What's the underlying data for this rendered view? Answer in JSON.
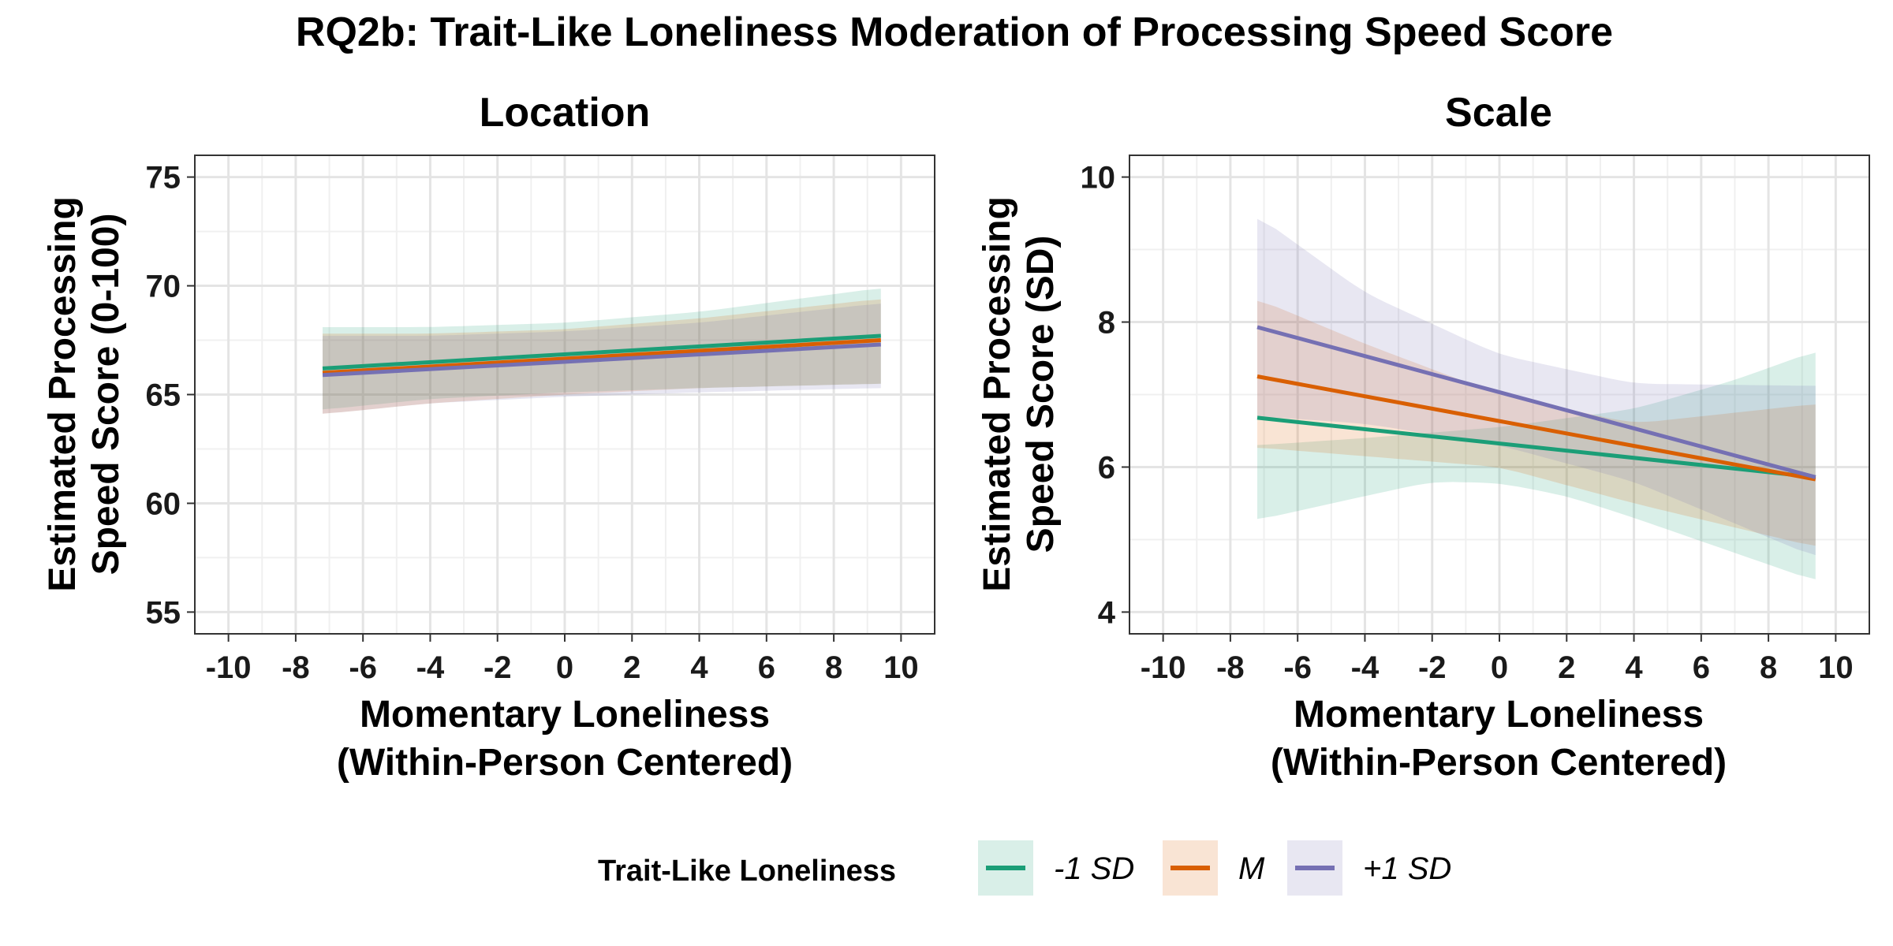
{
  "chart_data": {
    "type": "line",
    "title": "RQ2b: Trait-Like Loneliness Moderation of Processing Speed Score",
    "legend": {
      "title": "Trait-Like Loneliness",
      "placement": "bottom",
      "entries": [
        "-1 SD",
        "M",
        "+1 SD"
      ]
    },
    "colors": {
      "-1 SD": "#1b9e77",
      "M": "#d95f02",
      "+1 SD": "#7570b3"
    },
    "panels": [
      {
        "strip": "Location",
        "xlabel": "Momentary Loneliness\n(Within-Person Centered)",
        "ylabel": "Estimated Processing\nSpeed Score (0-100)",
        "xlim": [
          -11,
          11
        ],
        "ylim": [
          54,
          76
        ],
        "xticks": [
          -10,
          -8,
          -6,
          -4,
          -2,
          0,
          2,
          4,
          6,
          8,
          10
        ],
        "yticks": [
          55,
          60,
          65,
          70,
          75
        ],
        "grid": true,
        "series": [
          {
            "name": "-1 SD",
            "x": [
              -7.2,
              9.4
            ],
            "y": [
              66.2,
              67.7
            ],
            "lower": [
              [
                -7.2,
                64.3
              ],
              [
                -4,
                64.8
              ],
              [
                0,
                65.1
              ],
              [
                4,
                65.3
              ],
              [
                9.4,
                65.5
              ]
            ],
            "upper": [
              [
                -7.2,
                68.1
              ],
              [
                -4,
                68.1
              ],
              [
                0,
                68.3
              ],
              [
                4,
                68.8
              ],
              [
                9.4,
                69.9
              ]
            ]
          },
          {
            "name": "M",
            "x": [
              -7.2,
              9.4
            ],
            "y": [
              66.0,
              67.5
            ],
            "lower": [
              [
                -7.2,
                64.1
              ],
              [
                -4,
                64.6
              ],
              [
                0,
                65.0
              ],
              [
                4,
                65.3
              ],
              [
                9.4,
                65.5
              ]
            ],
            "upper": [
              [
                -7.2,
                67.8
              ],
              [
                -4,
                67.8
              ],
              [
                0,
                68.0
              ],
              [
                4,
                68.5
              ],
              [
                9.4,
                69.4
              ]
            ]
          },
          {
            "name": "+1 SD",
            "x": [
              -7.2,
              9.4
            ],
            "y": [
              65.9,
              67.3
            ],
            "lower": [
              [
                -7.2,
                64.1
              ],
              [
                -4,
                64.6
              ],
              [
                0,
                64.9
              ],
              [
                4,
                65.1
              ],
              [
                9.4,
                65.3
              ]
            ],
            "upper": [
              [
                -7.2,
                67.7
              ],
              [
                -4,
                67.7
              ],
              [
                0,
                67.9
              ],
              [
                4,
                68.3
              ],
              [
                9.4,
                69.2
              ]
            ]
          }
        ]
      },
      {
        "strip": "Scale",
        "xlabel": "Momentary Loneliness\n(Within-Person Centered)",
        "ylabel": "Estimated Processing\nSpeed Score (SD)",
        "xlim": [
          -11,
          11
        ],
        "ylim": [
          3.7,
          10.3
        ],
        "xticks": [
          -10,
          -8,
          -6,
          -4,
          -2,
          0,
          2,
          4,
          6,
          8,
          10
        ],
        "yticks": [
          4,
          6,
          8,
          10
        ],
        "grid": true,
        "series": [
          {
            "name": "-1 SD",
            "x": [
              -7.2,
              9.4
            ],
            "y": [
              6.68,
              5.86
            ],
            "lower": [
              [
                -7.2,
                5.27
              ],
              [
                -4,
                5.6
              ],
              [
                -2,
                5.8
              ],
              [
                0,
                5.78
              ],
              [
                2,
                5.6
              ],
              [
                4,
                5.3
              ],
              [
                9.4,
                4.43
              ]
            ],
            "upper": [
              [
                -7.2,
                6.3
              ],
              [
                -4,
                6.4
              ],
              [
                0,
                6.55
              ],
              [
                4,
                6.8
              ],
              [
                7,
                7.2
              ],
              [
                9.4,
                7.6
              ]
            ]
          },
          {
            "name": "M",
            "x": [
              -7.2,
              9.4
            ],
            "y": [
              7.25,
              5.83
            ],
            "lower": [
              [
                -7.2,
                6.27
              ],
              [
                -4,
                6.15
              ],
              [
                0,
                6.0
              ],
              [
                2,
                5.75
              ],
              [
                4,
                5.5
              ],
              [
                9.4,
                4.9
              ]
            ],
            "upper": [
              [
                -7.2,
                8.32
              ],
              [
                -4,
                7.7
              ],
              [
                0,
                7.0
              ],
              [
                4,
                6.6
              ],
              [
                9.4,
                6.87
              ]
            ]
          },
          {
            "name": "+1 SD",
            "x": [
              -7.2,
              9.4
            ],
            "y": [
              7.93,
              5.86
            ],
            "lower": [
              [
                -7.2,
                6.7
              ],
              [
                -4,
                6.6
              ],
              [
                0,
                6.3
              ],
              [
                4,
                5.8
              ],
              [
                9.4,
                4.76
              ]
            ],
            "upper": [
              [
                -7.2,
                9.47
              ],
              [
                -4,
                8.4
              ],
              [
                0,
                7.55
              ],
              [
                4,
                7.15
              ],
              [
                9.4,
                7.12
              ]
            ]
          }
        ]
      }
    ]
  }
}
